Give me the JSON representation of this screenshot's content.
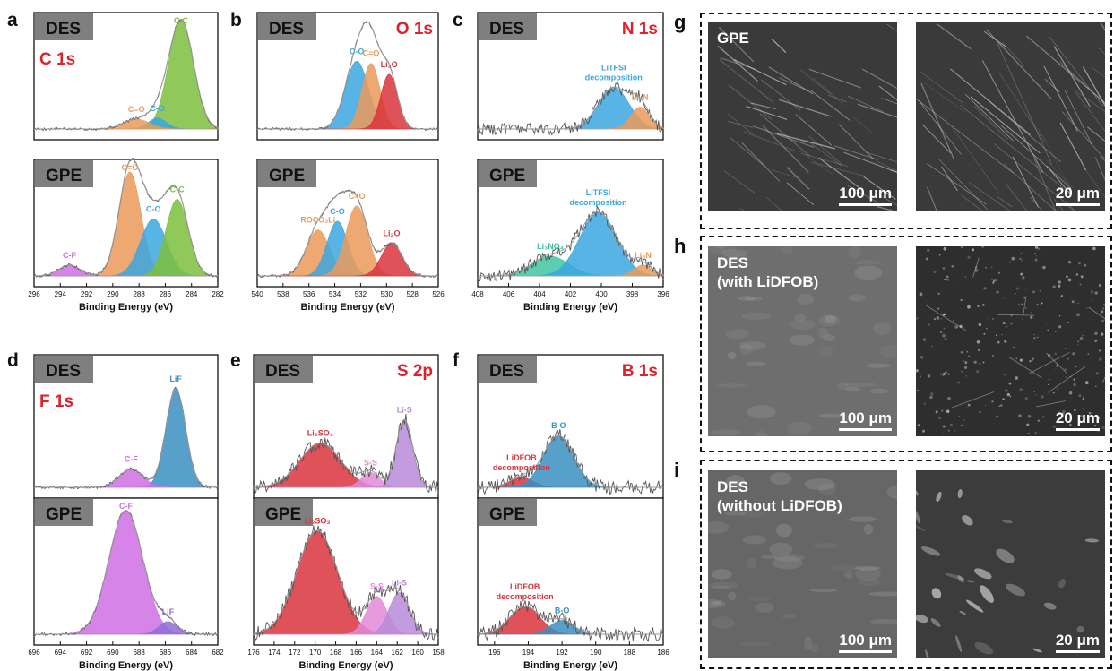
{
  "panel_letters": {
    "a": "a",
    "b": "b",
    "c": "c",
    "d": "d",
    "e": "e",
    "f": "f",
    "g": "g",
    "h": "h",
    "i": "i"
  },
  "colors": {
    "green": "#7dbf3c",
    "orange": "#eb9a5a",
    "blue": "#3aa7e0",
    "red": "#d9343c",
    "magenta": "#cf6fe3",
    "steel": "#3a8fc0",
    "teal": "#3fc4a0",
    "purple": "#b98ad9",
    "pink": "#e08ad8",
    "label_red": "#e0202a",
    "tag_bg": "#7f7f7f"
  },
  "chart_data": [
    {
      "type": "line",
      "panel": "a",
      "element": "C 1s",
      "xlabel": "Binding Energy (eV)",
      "xlim": [
        296,
        282
      ],
      "xticks": [
        296,
        294,
        292,
        290,
        288,
        286,
        284,
        282
      ],
      "tick_labels": [
        "296",
        "294",
        "292",
        "290",
        "288",
        "286",
        "284",
        "282"
      ],
      "subplots": [
        {
          "tag": "DES",
          "element_label": "C 1s",
          "peaks": [
            {
              "label": "C-C",
              "center": 284.8,
              "amp": 1.0,
              "width": 0.95,
              "color": "#7dbf3c"
            },
            {
              "label": "C-O",
              "center": 286.6,
              "amp": 0.1,
              "width": 0.7,
              "color": "#3aa7e0"
            },
            {
              "label": "C=O",
              "center": 288.2,
              "amp": 0.09,
              "width": 1.0,
              "color": "#eb9a5a"
            }
          ]
        },
        {
          "tag": "GPE",
          "peaks": [
            {
              "label": "C=O",
              "center": 288.7,
              "amp": 0.95,
              "width": 0.85,
              "color": "#eb9a5a"
            },
            {
              "label": "C-O",
              "center": 286.9,
              "amp": 0.52,
              "width": 1.0,
              "color": "#3aa7e0"
            },
            {
              "label": "C-C",
              "center": 285.1,
              "amp": 0.7,
              "width": 0.85,
              "color": "#7dbf3c"
            },
            {
              "label": "C-F",
              "center": 293.3,
              "amp": 0.1,
              "width": 0.8,
              "color": "#cf6fe3"
            }
          ]
        }
      ]
    },
    {
      "type": "line",
      "panel": "b",
      "element": "O 1s",
      "xlabel": "Binding Energy (eV)",
      "xlim": [
        540,
        526
      ],
      "xticks": [
        540,
        538,
        536,
        534,
        532,
        530,
        528,
        526
      ],
      "tick_labels": [
        "540",
        "538",
        "536",
        "534",
        "532",
        "530",
        "528",
        "526"
      ],
      "subplots": [
        {
          "tag": "DES",
          "element_label": "O 1s",
          "peaks": [
            {
              "label": "C-O",
              "center": 532.3,
              "amp": 0.62,
              "width": 0.9,
              "color": "#3aa7e0"
            },
            {
              "label": "C=O",
              "center": 531.2,
              "amp": 0.6,
              "width": 0.7,
              "color": "#eb9a5a"
            },
            {
              "label": "Li₂O",
              "center": 529.8,
              "amp": 0.5,
              "width": 0.65,
              "color": "#d9343c"
            }
          ]
        },
        {
          "tag": "GPE",
          "peaks": [
            {
              "label": "ROCO₂Li",
              "center": 535.3,
              "amp": 0.42,
              "width": 0.9,
              "color": "#eb9a5a"
            },
            {
              "label": "C-O",
              "center": 533.8,
              "amp": 0.5,
              "width": 0.8,
              "color": "#3aa7e0"
            },
            {
              "label": "C=O",
              "center": 532.3,
              "amp": 0.64,
              "width": 0.85,
              "color": "#eb9a5a"
            },
            {
              "label": "Li₂O",
              "center": 529.6,
              "amp": 0.3,
              "width": 0.8,
              "color": "#d9343c"
            }
          ]
        }
      ]
    },
    {
      "type": "line",
      "panel": "c",
      "element": "N 1s",
      "xlabel": "Binding Energy (eV)",
      "xlim": [
        408,
        396
      ],
      "xticks": [
        408,
        406,
        404,
        402,
        400,
        398,
        396
      ],
      "tick_labels": [
        "408",
        "406",
        "404",
        "402",
        "400",
        "398",
        "396"
      ],
      "subplots": [
        {
          "tag": "DES",
          "element_label": "N 1s",
          "peaks": [
            {
              "label": "LiTFSI decomposition",
              "center": 399.2,
              "amp": 0.38,
              "width": 1.0,
              "color": "#3aa7e0"
            },
            {
              "label": "Li₃N",
              "center": 397.5,
              "amp": 0.2,
              "width": 0.6,
              "color": "#eb9a5a"
            }
          ]
        },
        {
          "tag": "GPE",
          "peaks": [
            {
              "label": "Li₃NO₄",
              "center": 403.3,
              "amp": 0.18,
              "width": 1.2,
              "color": "#3fc4a0"
            },
            {
              "label": "LiTFSI decomposition",
              "center": 400.2,
              "amp": 0.58,
              "width": 1.2,
              "color": "#3aa7e0"
            },
            {
              "label": "Li₃N",
              "center": 397.3,
              "amp": 0.1,
              "width": 0.6,
              "color": "#eb9a5a"
            }
          ]
        }
      ]
    },
    {
      "type": "line",
      "panel": "d",
      "element": "F 1s",
      "xlabel": "Binding Energy (eV)",
      "xlim": [
        696,
        682
      ],
      "xticks": [
        696,
        694,
        692,
        690,
        688,
        686,
        684,
        682
      ],
      "tick_labels": [
        "696",
        "694",
        "692",
        "690",
        "688",
        "686",
        "684",
        "682"
      ],
      "subplots": [
        {
          "tag": "DES",
          "element_label": "F 1s",
          "peaks": [
            {
              "label": "LiF",
              "center": 685.2,
              "amp": 0.8,
              "width": 0.75,
              "color": "#3a8fc0"
            },
            {
              "label": "C-F",
              "center": 688.6,
              "amp": 0.15,
              "width": 0.9,
              "color": "#cf6fe3"
            }
          ]
        },
        {
          "tag": "GPE",
          "peaks": [
            {
              "label": "C-F",
              "center": 689.0,
              "amp": 0.98,
              "width": 1.3,
              "color": "#cf6fe3"
            },
            {
              "label": "LiF",
              "center": 685.8,
              "amp": 0.1,
              "width": 0.7,
              "color": "#8f6fd6"
            }
          ]
        }
      ]
    },
    {
      "type": "line",
      "panel": "e",
      "element": "S 2p",
      "xlabel": "Binding Energy (eV)",
      "xlim": [
        176,
        158
      ],
      "xticks": [
        176,
        174,
        172,
        170,
        168,
        166,
        164,
        162,
        160,
        158
      ],
      "tick_labels": [
        "176",
        "174",
        "172",
        "170",
        "168",
        "166",
        "164",
        "162",
        "160",
        "158"
      ],
      "subplots": [
        {
          "tag": "DES",
          "element_label": "S 2p",
          "peaks": [
            {
              "label": "Li₂SO₃",
              "center": 169.5,
              "amp": 0.36,
              "width": 2.0,
              "color": "#d9343c"
            },
            {
              "label": "S-S",
              "center": 164.6,
              "amp": 0.12,
              "width": 0.9,
              "color": "#e08ad8"
            },
            {
              "label": "Li-S",
              "center": 161.3,
              "amp": 0.55,
              "width": 0.8,
              "color": "#b98ad9"
            }
          ]
        },
        {
          "tag": "GPE",
          "peaks": [
            {
              "label": "Li₂SO₃",
              "center": 169.8,
              "amp": 0.82,
              "width": 2.0,
              "color": "#d9343c"
            },
            {
              "label": "S-S",
              "center": 164.0,
              "amp": 0.3,
              "width": 1.0,
              "color": "#e08ad8"
            },
            {
              "label": "Li-S",
              "center": 161.8,
              "amp": 0.33,
              "width": 1.0,
              "color": "#b98ad9"
            }
          ]
        }
      ]
    },
    {
      "type": "line",
      "panel": "f",
      "element": "B 1s",
      "xlabel": "Binding Energy (eV)",
      "xlim": [
        197,
        186
      ],
      "xticks": [
        196,
        194,
        192,
        190,
        188,
        186
      ],
      "tick_labels": [
        "196",
        "194",
        "192",
        "190",
        "188",
        "186"
      ],
      "subplots": [
        {
          "tag": "DES",
          "element_label": "B 1s",
          "peaks": [
            {
              "label": "LiDFOB decomposition",
              "center": 194.4,
              "amp": 0.08,
              "width": 0.7,
              "color": "#d9343c"
            },
            {
              "label": "B-O",
              "center": 192.2,
              "amp": 0.42,
              "width": 0.9,
              "color": "#3a8fc0"
            }
          ]
        },
        {
          "tag": "GPE",
          "peaks": [
            {
              "label": "LiDFOB decomposition",
              "center": 194.2,
              "amp": 0.22,
              "width": 0.9,
              "color": "#d9343c"
            },
            {
              "label": "B-O",
              "center": 192.0,
              "amp": 0.11,
              "width": 0.7,
              "color": "#3a8fc0"
            }
          ]
        }
      ]
    }
  ],
  "micrographs": [
    {
      "panel": "g",
      "label": "GPE",
      "scale_left": "100 μm",
      "scale_right": "20 μm"
    },
    {
      "panel": "h",
      "label": "DES\n(with LiDFOB)",
      "scale_left": "100 μm",
      "scale_right": "20 μm"
    },
    {
      "panel": "i",
      "label": "DES\n(without LiDFOB)",
      "scale_left": "100 μm",
      "scale_right": "20 μm"
    }
  ]
}
